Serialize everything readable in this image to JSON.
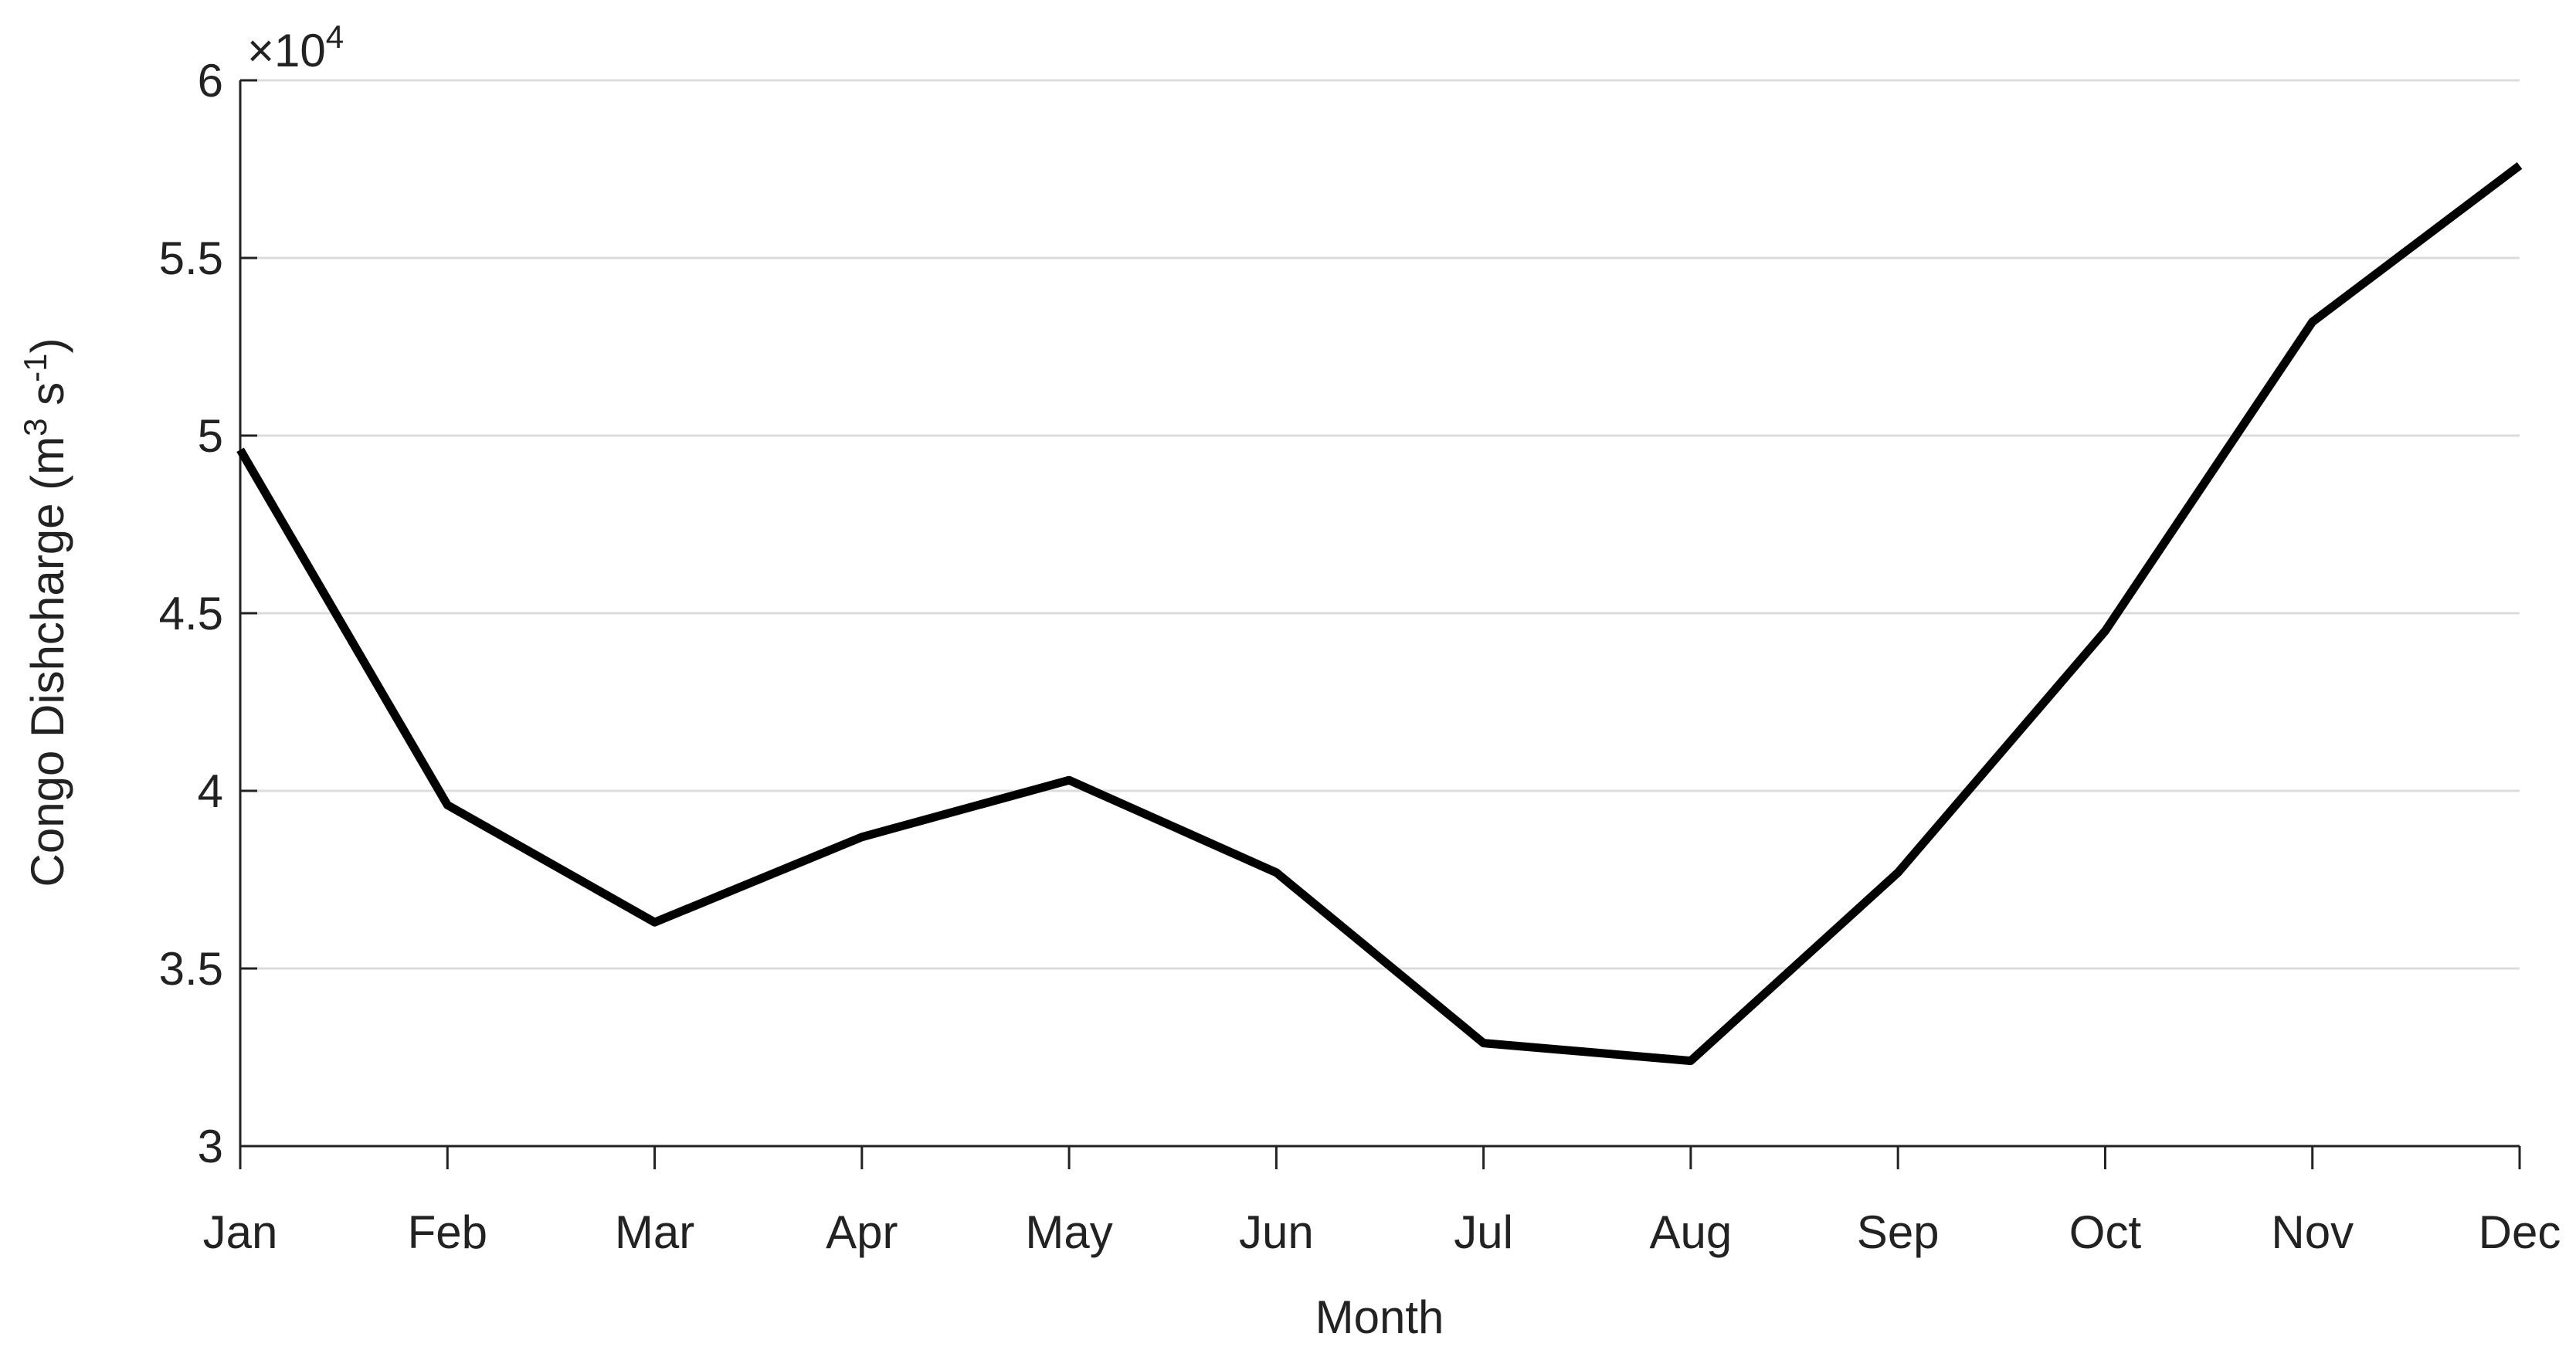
{
  "chart_data": {
    "type": "line",
    "y_label": {
      "parts": [
        "Congo Dishcharge (m",
        "3",
        " s",
        "-1",
        ")"
      ]
    },
    "y_multiplier": {
      "base": "×10",
      "power": "4"
    },
    "x_label": "Month",
    "categories": [
      "Jan",
      "Feb",
      "Mar",
      "Apr",
      "May",
      "Jun",
      "Jul",
      "Aug",
      "Sep",
      "Oct",
      "Nov",
      "Dec"
    ],
    "values": [
      4.96,
      3.96,
      3.63,
      3.87,
      4.03,
      3.77,
      3.29,
      3.24,
      3.77,
      4.45,
      5.32,
      5.76
    ],
    "color": "#000000",
    "ylim": [
      3,
      6
    ],
    "yticks": [
      3,
      3.5,
      4,
      4.5,
      5,
      5.5,
      6
    ],
    "grid": true
  }
}
